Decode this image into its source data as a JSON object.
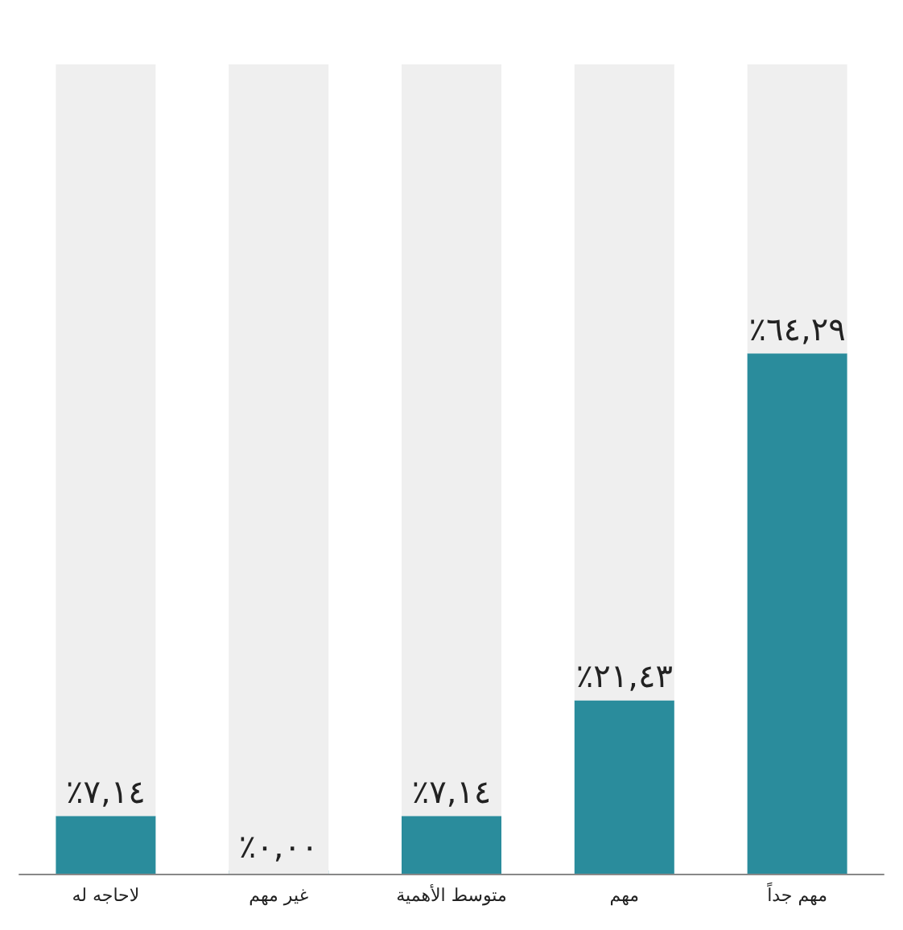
{
  "chart_data": {
    "type": "bar",
    "categories": [
      "لاحاجه له",
      "غير مهم",
      "متوسط الأهمية",
      "مهم",
      "مهم جداً"
    ],
    "stacked": true,
    "series": [
      {
        "color": "#2a8c9c",
        "values": [
          7.14,
          0,
          7.14,
          21.43,
          64.29
        ],
        "value_labels": [
          "٪٧,١٤",
          "٪٠,٠٠",
          "٪٧,١٤",
          "٪٢١,٤٣",
          "٪٦٤,٢٩"
        ]
      },
      {
        "color": "#efefef",
        "values": [
          92.86,
          100,
          92.86,
          78.57,
          35.71
        ]
      }
    ],
    "ylim": [
      0,
      100
    ],
    "tick_labels": "x",
    "grid": false
  }
}
